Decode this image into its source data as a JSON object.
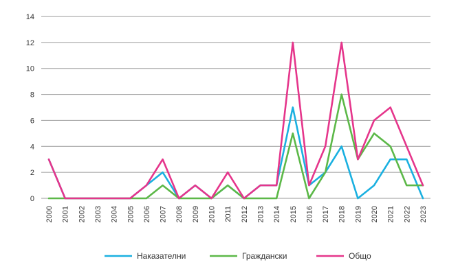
{
  "chart_data": {
    "type": "line",
    "title": "",
    "xlabel": "",
    "ylabel": "",
    "x": [
      "2000",
      "2001",
      "2002",
      "2003",
      "2004",
      "2005",
      "2006",
      "2007",
      "2008",
      "2009",
      "2010",
      "2011",
      "2012",
      "2013",
      "2014",
      "2015",
      "2016",
      "2017",
      "2018",
      "2019",
      "2020",
      "2021",
      "2022",
      "2023"
    ],
    "ylim": [
      0,
      14
    ],
    "yticks": [
      0,
      2,
      4,
      6,
      8,
      10,
      12,
      14
    ],
    "grid": "horizontal",
    "legend_position": "bottom",
    "series": [
      {
        "name": "Наказателни",
        "color": "#1ab0e0",
        "values": [
          3,
          0,
          0,
          0,
          0,
          0,
          1,
          2,
          0,
          1,
          0,
          1,
          0,
          1,
          1,
          7,
          1,
          2,
          4,
          0,
          1,
          3,
          3,
          0
        ]
      },
      {
        "name": "Граждански",
        "color": "#5cb848",
        "values": [
          0,
          0,
          0,
          0,
          0,
          0,
          0,
          1,
          0,
          0,
          0,
          1,
          0,
          0,
          0,
          5,
          0,
          2,
          8,
          3,
          5,
          4,
          1,
          1
        ]
      },
      {
        "name": "Общо",
        "color": "#e5358b",
        "values": [
          3,
          0,
          0,
          0,
          0,
          0,
          1,
          3,
          0,
          1,
          0,
          2,
          0,
          1,
          1,
          12,
          1,
          4,
          12,
          3,
          6,
          7,
          4,
          1
        ]
      }
    ]
  }
}
